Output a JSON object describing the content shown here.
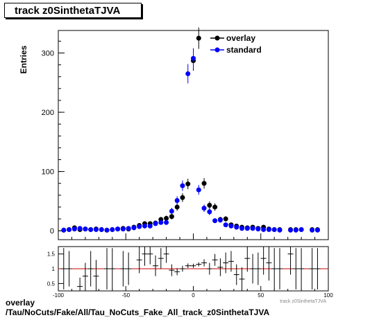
{
  "title": "track z0SinthetaTJVA",
  "footer": {
    "line1": "overlay",
    "line2": "/Tau/NoCuts/Fake/All/Tau_NoCuts_Fake_All_track_z0SinthetaTJVA"
  },
  "colors": {
    "overlay": "#000000",
    "standard": "#0000ff",
    "ratio_line": "#cc0000"
  },
  "chart_data": [
    {
      "type": "scatter",
      "ylabel": "Entries",
      "xlim": [
        -100,
        100
      ],
      "ylim": [
        -15,
        338
      ],
      "y_ticks": [
        0,
        100,
        200,
        300
      ],
      "x_ticks": [
        -100,
        -50,
        0,
        50,
        100
      ],
      "legend": "top-right",
      "series": [
        {
          "name": "overlay",
          "x": [
            -96,
            -92,
            -88,
            -84,
            -80,
            -76,
            -72,
            -68,
            -64,
            -60,
            -56,
            -52,
            -48,
            -44,
            -40,
            -36,
            -32,
            -28,
            -24,
            -20,
            -16,
            -12,
            -8,
            -4,
            0,
            4,
            8,
            12,
            16,
            20,
            24,
            28,
            32,
            36,
            40,
            44,
            48,
            52,
            56,
            60,
            64,
            72,
            76,
            80,
            88,
            92
          ],
          "y": [
            1,
            2,
            5,
            2,
            3,
            2,
            3,
            2,
            1,
            2,
            3,
            4,
            3,
            6,
            9,
            12,
            12,
            13,
            19,
            21,
            24,
            40,
            56,
            79,
            287,
            325,
            80,
            43,
            40,
            19,
            20,
            10,
            8,
            6,
            5,
            6,
            4,
            6,
            3,
            2,
            2,
            2,
            2,
            2,
            2,
            2
          ]
        },
        {
          "name": "standard",
          "x": [
            -96,
            -92,
            -88,
            -84,
            -80,
            -76,
            -72,
            -68,
            -64,
            -60,
            -56,
            -52,
            -48,
            -44,
            -40,
            -36,
            -32,
            -28,
            -24,
            -20,
            -16,
            -12,
            -8,
            -4,
            0,
            4,
            8,
            12,
            16,
            20,
            24,
            28,
            32,
            36,
            40,
            44,
            48,
            52,
            56,
            60,
            64,
            72,
            76,
            80,
            88,
            92
          ],
          "y": [
            1,
            2,
            3,
            4,
            3,
            2,
            2,
            2,
            1,
            2,
            3,
            3,
            4,
            5,
            7,
            8,
            8,
            12,
            14,
            14,
            33,
            51,
            76,
            265,
            291,
            69,
            38,
            32,
            17,
            18,
            10,
            8,
            6,
            4,
            4,
            4,
            3,
            2,
            2,
            2,
            1,
            1,
            1,
            2,
            1,
            1
          ]
        }
      ]
    },
    {
      "type": "scatter",
      "xlabel": "track z0SinthetaTJVA",
      "xlim": [
        -100,
        100
      ],
      "ylim": [
        0.25,
        1.75
      ],
      "y_ticks": [
        0.5,
        1,
        1.5
      ],
      "y_tick_labels": [
        "0.5",
        "1",
        "1.5"
      ],
      "x_ticks": [
        -100,
        -50,
        0,
        50,
        100
      ],
      "reference_line": 1,
      "series": [
        {
          "name": "ratio",
          "x": [
            -96,
            -92,
            -84,
            -80,
            -76,
            -72,
            -64,
            -60,
            -52,
            -48,
            -40,
            -36,
            -32,
            -28,
            -24,
            -20,
            -16,
            -12,
            -8,
            -4,
            0,
            4,
            8,
            12,
            16,
            20,
            24,
            28,
            32,
            36,
            40,
            44,
            48,
            52,
            56,
            60,
            64,
            72,
            76,
            80,
            88,
            92
          ],
          "y": [
            1.0,
            1.0,
            0.4,
            0.75,
            1.0,
            0.75,
            1.0,
            1.0,
            1.0,
            1.0,
            1.3,
            1.5,
            1.5,
            1.1,
            1.35,
            1.5,
            0.95,
            0.9,
            1.0,
            1.1,
            1.1,
            1.15,
            1.2,
            1.0,
            1.3,
            1.05,
            1.2,
            1.25,
            0.8,
            0.65,
            1.35,
            1.0,
            1.0,
            1.35,
            1.2,
            1.0,
            1.0,
            1.5,
            1.0,
            1.0,
            1.0,
            1.0
          ],
          "err": [
            0.7,
            0.6,
            0.3,
            0.45,
            0.6,
            0.55,
            0.7,
            0.7,
            0.6,
            0.55,
            0.45,
            0.4,
            0.35,
            0.35,
            0.35,
            0.3,
            0.2,
            0.12,
            0.1,
            0.08,
            0.07,
            0.07,
            0.12,
            0.2,
            0.2,
            0.3,
            0.35,
            0.35,
            0.35,
            0.4,
            0.45,
            0.5,
            0.55,
            0.55,
            0.6,
            0.7,
            0.7,
            0.7,
            0.7,
            0.7,
            0.7,
            0.7
          ]
        }
      ]
    }
  ]
}
